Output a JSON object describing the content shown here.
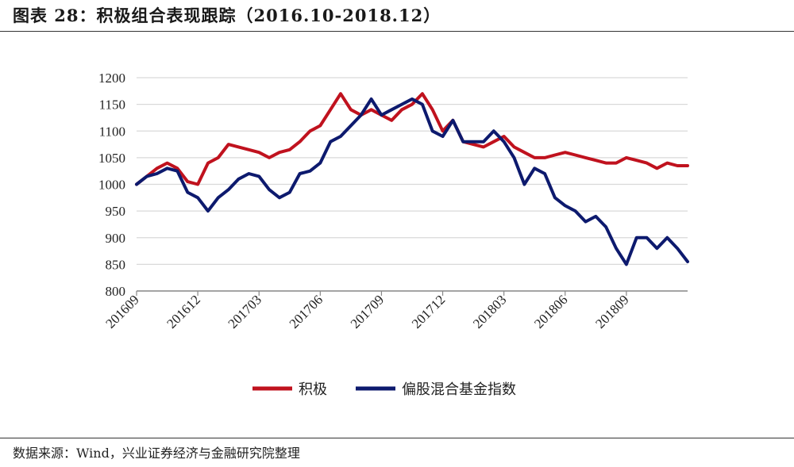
{
  "header": {
    "title": "图表 28：积极组合表现跟踪（2016.10-2018.12）"
  },
  "footer": {
    "source": "数据来源：Wind，兴业证券经济与金融研究院整理"
  },
  "chart_data": {
    "type": "line",
    "title": "图表 28：积极组合表现跟踪（2016.10-2018.12）",
    "xlabel": "",
    "ylabel": "",
    "ylim": [
      800,
      1200
    ],
    "yticks": [
      800,
      850,
      900,
      950,
      1000,
      1050,
      1100,
      1150,
      1200
    ],
    "xlim": [
      0,
      27
    ],
    "xticks": [
      "201609",
      "201612",
      "201703",
      "201706",
      "201709",
      "201712",
      "201803",
      "201806",
      "201809"
    ],
    "grid": true,
    "legend": "bottom",
    "x": [
      0,
      0.5,
      1,
      1.5,
      2,
      2.5,
      3,
      3.5,
      4,
      4.5,
      5,
      5.5,
      6,
      6.5,
      7,
      7.5,
      8,
      8.5,
      9,
      9.5,
      10,
      10.5,
      11,
      11.5,
      12,
      12.5,
      13,
      13.5,
      14,
      14.5,
      15,
      15.5,
      16,
      16.5,
      17,
      17.5,
      18,
      18.5,
      19,
      19.5,
      20,
      20.5,
      21,
      21.5,
      22,
      22.5,
      23,
      23.5,
      24,
      24.5,
      25,
      25.5,
      26,
      26.5,
      27
    ],
    "series": [
      {
        "name": "积极",
        "color": "#c0121e",
        "values": [
          1000,
          1015,
          1030,
          1040,
          1030,
          1005,
          1000,
          1040,
          1050,
          1075,
          1070,
          1065,
          1060,
          1050,
          1060,
          1065,
          1080,
          1100,
          1110,
          1140,
          1170,
          1140,
          1130,
          1140,
          1130,
          1120,
          1140,
          1150,
          1170,
          1140,
          1100,
          1120,
          1080,
          1075,
          1070,
          1080,
          1090,
          1070,
          1060,
          1050,
          1050,
          1055,
          1060,
          1055,
          1050,
          1045,
          1040,
          1040,
          1050,
          1045,
          1040,
          1030,
          1040,
          1035,
          1035
        ]
      },
      {
        "name": "偏股混合基金指数",
        "color": "#0d1a6e",
        "values": [
          1000,
          1015,
          1020,
          1030,
          1025,
          985,
          975,
          950,
          975,
          990,
          1010,
          1020,
          1015,
          990,
          975,
          985,
          1020,
          1025,
          1040,
          1080,
          1090,
          1110,
          1130,
          1160,
          1130,
          1140,
          1150,
          1160,
          1150,
          1100,
          1090,
          1120,
          1080,
          1080,
          1080,
          1100,
          1080,
          1050,
          1000,
          1030,
          1020,
          975,
          960,
          950,
          930,
          940,
          920,
          880,
          850,
          900,
          900,
          880,
          900,
          880,
          855
        ]
      }
    ]
  }
}
